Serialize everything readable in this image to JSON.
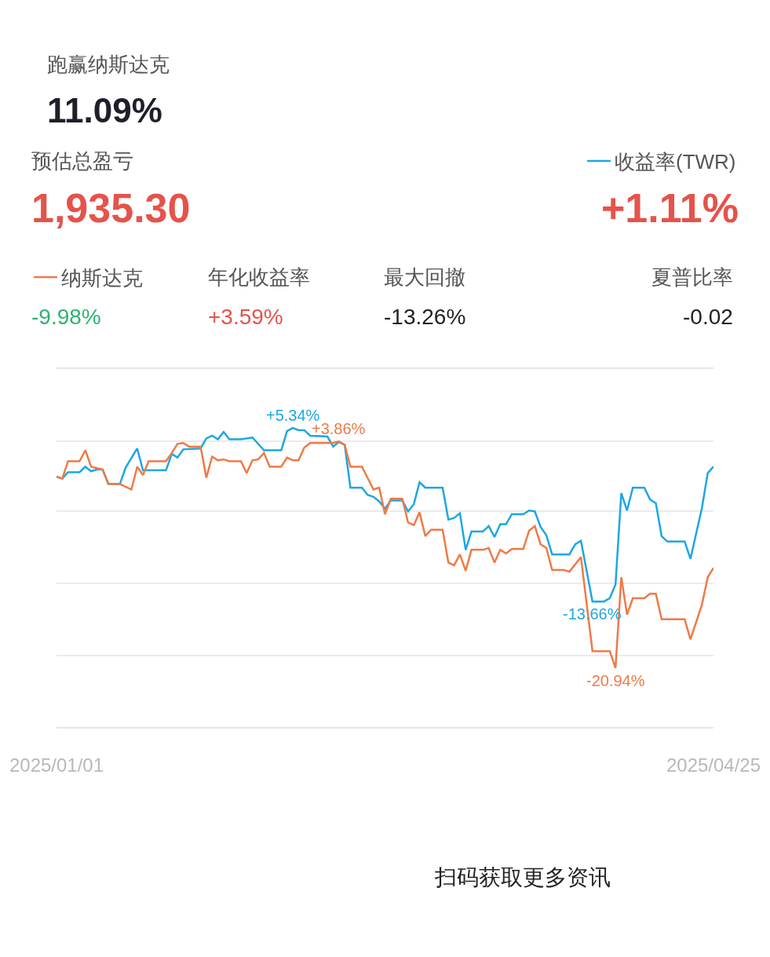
{
  "chart_data": {
    "type": "line",
    "annotations": [
      "跑赢纳斯达克",
      "11.09%",
      "预估总盈亏",
      "1,935.30",
      "+1.11%",
      "年化收益率",
      "最大回撤",
      "夏普比率",
      "-9.98%",
      "+3.59%",
      "-13.26%",
      "-0.02",
      "扫码获取更多资讯"
    ],
    "series": [
      {
        "name": "收益率(TWR)",
        "color": "#1ea6e4",
        "x": [
          "2025-01-01",
          "2025-01-02",
          "2025-01-03",
          "2025-01-05",
          "2025-01-06",
          "2025-01-07",
          "2025-01-08",
          "2025-01-09",
          "2025-01-10",
          "2025-01-12",
          "2025-01-13",
          "2025-01-15",
          "2025-01-16",
          "2025-01-20",
          "2025-01-21",
          "2025-01-22",
          "2025-01-23",
          "2025-01-26",
          "2025-01-27",
          "2025-01-28",
          "2025-01-29",
          "2025-01-30",
          "2025-01-31",
          "2025-02-02",
          "2025-02-03",
          "2025-02-04",
          "2025-02-06",
          "2025-02-09",
          "2025-02-10",
          "2025-02-11",
          "2025-02-12",
          "2025-02-13",
          "2025-02-14",
          "2025-02-17",
          "2025-02-18",
          "2025-02-19",
          "2025-02-20",
          "2025-02-21",
          "2025-02-23",
          "2025-02-24",
          "2025-02-25",
          "2025-02-26",
          "2025-02-27",
          "2025-02-28",
          "2025-03-02",
          "2025-03-03",
          "2025-03-04",
          "2025-03-05",
          "2025-03-06",
          "2025-03-09",
          "2025-03-10",
          "2025-03-11",
          "2025-03-12",
          "2025-03-13",
          "2025-03-14",
          "2025-03-16",
          "2025-03-17",
          "2025-03-18",
          "2025-03-19",
          "2025-03-20",
          "2025-03-21",
          "2025-03-23",
          "2025-03-24",
          "2025-03-25",
          "2025-03-26",
          "2025-03-27",
          "2025-03-28",
          "2025-03-31",
          "2025-04-01",
          "2025-04-02",
          "2025-04-04",
          "2025-04-06",
          "2025-04-07",
          "2025-04-08",
          "2025-04-09",
          "2025-04-10",
          "2025-04-11",
          "2025-04-13",
          "2025-04-14",
          "2025-04-15",
          "2025-04-16",
          "2025-04-17",
          "2025-04-20",
          "2025-04-21",
          "2025-04-23",
          "2025-04-24",
          "2025-04-25"
        ],
        "values": [
          0,
          -0.2,
          0.5,
          0.5,
          1.1,
          0.6,
          0.8,
          0.8,
          -0.8,
          -0.8,
          1.0,
          3.1,
          0.7,
          0.7,
          2.5,
          2.1,
          3.0,
          3.1,
          4.2,
          4.5,
          4.1,
          4.9,
          4.1,
          4.1,
          4.2,
          4.3,
          2.9,
          2.9,
          5.0,
          5.34,
          5.1,
          5.1,
          4.5,
          4.4,
          3.3,
          3.8,
          3.5,
          -1.2,
          -1.2,
          -2.0,
          -2.2,
          -2.7,
          -3.5,
          -2.6,
          -2.6,
          -3.8,
          -3.0,
          -0.6,
          -1.2,
          -1.2,
          -4.7,
          -4.5,
          -4.0,
          -8.0,
          -6.0,
          -6.0,
          -5.4,
          -6.6,
          -5.2,
          -5.2,
          -4.1,
          -4.1,
          -3.7,
          -3.8,
          -5.5,
          -6.4,
          -8.5,
          -8.5,
          -7.4,
          -7.0,
          -13.66,
          -13.66,
          -13.3,
          -11.8,
          -1.8,
          -3.7,
          -1.2,
          -1.2,
          -2.5,
          -2.9,
          -6.5,
          -7.1,
          -7.1,
          -9.0,
          -3.4,
          0.4,
          1.11
        ],
        "value_labels": [
          null,
          null,
          null,
          null,
          null,
          null,
          null,
          null,
          null,
          null,
          null,
          null,
          null,
          null,
          null,
          null,
          null,
          null,
          null,
          null,
          null,
          null,
          null,
          null,
          null,
          null,
          null,
          null,
          null,
          "+5.34%",
          null,
          null,
          null,
          null,
          null,
          null,
          null,
          null,
          null,
          null,
          null,
          null,
          null,
          null,
          null,
          null,
          null,
          null,
          null,
          null,
          null,
          null,
          null,
          null,
          null,
          null,
          null,
          null,
          null,
          null,
          null,
          null,
          null,
          null,
          null,
          null,
          null,
          null,
          null,
          null,
          "-13.66%",
          null,
          null,
          null,
          null,
          null,
          null,
          null,
          null,
          null,
          null,
          null,
          null,
          null,
          null,
          null,
          null
        ]
      },
      {
        "name": "纳斯达克",
        "color": "#ef7a47",
        "x": [
          "2025-01-01",
          "2025-01-02",
          "2025-01-03",
          "2025-01-05",
          "2025-01-06",
          "2025-01-07",
          "2025-01-09",
          "2025-01-10",
          "2025-01-12",
          "2025-01-14",
          "2025-01-15",
          "2025-01-16",
          "2025-01-17",
          "2025-01-20",
          "2025-01-21",
          "2025-01-22",
          "2025-01-23",
          "2025-01-24",
          "2025-01-26",
          "2025-01-27",
          "2025-01-28",
          "2025-01-29",
          "2025-01-30",
          "2025-01-31",
          "2025-02-02",
          "2025-02-03",
          "2025-02-04",
          "2025-02-05",
          "2025-02-06",
          "2025-02-07",
          "2025-02-09",
          "2025-02-10",
          "2025-02-11",
          "2025-02-12",
          "2025-02-13",
          "2025-02-14",
          "2025-02-18",
          "2025-02-19",
          "2025-02-20",
          "2025-02-21",
          "2025-02-23",
          "2025-02-25",
          "2025-02-26",
          "2025-02-27",
          "2025-02-28",
          "2025-03-02",
          "2025-03-03",
          "2025-03-04",
          "2025-03-05",
          "2025-03-06",
          "2025-03-07",
          "2025-03-09",
          "2025-03-10",
          "2025-03-11",
          "2025-03-12",
          "2025-03-13",
          "2025-03-14",
          "2025-03-16",
          "2025-03-17",
          "2025-03-18",
          "2025-03-19",
          "2025-03-20",
          "2025-03-21",
          "2025-03-23",
          "2025-03-24",
          "2025-03-25",
          "2025-03-26",
          "2025-03-27",
          "2025-03-28",
          "2025-03-30",
          "2025-03-31",
          "2025-04-02",
          "2025-04-04",
          "2025-04-07",
          "2025-04-08",
          "2025-04-09",
          "2025-04-10",
          "2025-04-11",
          "2025-04-13",
          "2025-04-14",
          "2025-04-15",
          "2025-04-16",
          "2025-04-17",
          "2025-04-20",
          "2025-04-21",
          "2025-04-23",
          "2025-04-24",
          "2025-04-25"
        ],
        "values": [
          0,
          -0.2,
          1.7,
          1.7,
          2.9,
          1.1,
          0.8,
          -0.8,
          -0.8,
          -1.4,
          1.1,
          0.2,
          1.7,
          1.7,
          2.6,
          3.6,
          3.7,
          3.3,
          3.3,
          -0.1,
          2.2,
          1.8,
          1.9,
          1.7,
          1.7,
          0.4,
          1.8,
          1.9,
          2.6,
          1.1,
          1.1,
          2.1,
          1.8,
          1.8,
          3.2,
          3.7,
          3.7,
          3.86,
          3.5,
          1.1,
          1.1,
          -1.4,
          -1.2,
          -4.1,
          -2.4,
          -2.4,
          -5.0,
          -5.3,
          -3.9,
          -6.5,
          -5.8,
          -5.8,
          -9.4,
          -9.7,
          -8.5,
          -10.3,
          -8.0,
          -8.0,
          -7.8,
          -9.4,
          -8.0,
          -8.4,
          -7.9,
          -7.9,
          -5.9,
          -5.4,
          -7.4,
          -7.8,
          -10.2,
          -10.2,
          -10.4,
          -8.8,
          -19.1,
          -19.1,
          -20.94,
          -11.0,
          -15.1,
          -13.3,
          -13.3,
          -12.8,
          -12.8,
          -15.6,
          -15.6,
          -15.6,
          -17.8,
          -14.0,
          -11.0,
          -9.98
        ],
        "value_labels": [
          null,
          null,
          null,
          null,
          null,
          null,
          null,
          null,
          null,
          null,
          null,
          null,
          null,
          null,
          null,
          null,
          null,
          null,
          null,
          null,
          null,
          null,
          null,
          null,
          null,
          null,
          null,
          null,
          null,
          null,
          null,
          null,
          null,
          null,
          null,
          null,
          null,
          "+3.86%",
          null,
          null,
          null,
          null,
          null,
          null,
          null,
          null,
          null,
          null,
          null,
          null,
          null,
          null,
          null,
          null,
          null,
          null,
          null,
          null,
          null,
          null,
          null,
          null,
          null,
          null,
          null,
          null,
          null,
          null,
          null,
          null,
          null,
          null,
          null,
          null,
          "-20.94%",
          null,
          null,
          null,
          null,
          null,
          null,
          null,
          null,
          null,
          null,
          null,
          null,
          null
        ]
      }
    ],
    "xlim": [
      "2025-01-01",
      "2025-04-25"
    ],
    "xticks": [
      {
        "value": "2025-01-01",
        "label": "2025/01/01"
      },
      {
        "value": "2025-04-25",
        "label": "2025/04/25"
      }
    ],
    "ylim": [
      -27.4,
      11.8
    ],
    "yticks": [
      {
        "value": 3.9,
        "label": null
      },
      {
        "value": -3.8,
        "label": null
      },
      {
        "value": -11.7,
        "label": null
      },
      {
        "value": -19.6,
        "label": null
      }
    ],
    "grid": "y",
    "legend": "top",
    "tick_labels": "x"
  }
}
